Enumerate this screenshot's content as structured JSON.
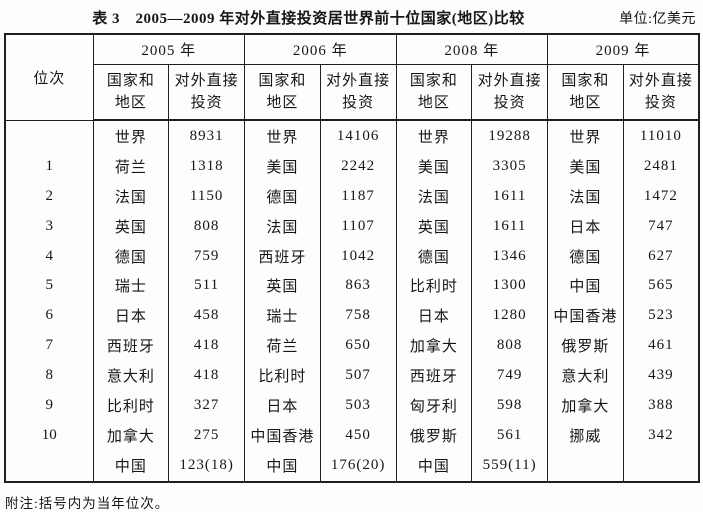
{
  "caption": {
    "title": "表 3　2005—2009 年对外直接投资居世界前十位国家(地区)比较",
    "unit": "单位:亿美元"
  },
  "table": {
    "rank_header": "位次",
    "years": [
      "2005 年",
      "2006 年",
      "2008 年",
      "2009 年"
    ],
    "sub_headers": {
      "country_line1": "国家和",
      "country_line2": "地区",
      "value_line1": "对外直接",
      "value_line2": "投资"
    },
    "rows": [
      {
        "rank": "",
        "cells": [
          [
            "世界",
            "8931"
          ],
          [
            "世界",
            "14106"
          ],
          [
            "世界",
            "19288"
          ],
          [
            "世界",
            "11010"
          ]
        ]
      },
      {
        "rank": "1",
        "cells": [
          [
            "荷兰",
            "1318"
          ],
          [
            "美国",
            "2242"
          ],
          [
            "美国",
            "3305"
          ],
          [
            "美国",
            "2481"
          ]
        ]
      },
      {
        "rank": "2",
        "cells": [
          [
            "法国",
            "1150"
          ],
          [
            "德国",
            "1187"
          ],
          [
            "法国",
            "1611"
          ],
          [
            "法国",
            "1472"
          ]
        ]
      },
      {
        "rank": "3",
        "cells": [
          [
            "英国",
            "808"
          ],
          [
            "法国",
            "1107"
          ],
          [
            "英国",
            "1611"
          ],
          [
            "日本",
            "747"
          ]
        ]
      },
      {
        "rank": "4",
        "cells": [
          [
            "德国",
            "759"
          ],
          [
            "西班牙",
            "1042"
          ],
          [
            "德国",
            "1346"
          ],
          [
            "德国",
            "627"
          ]
        ]
      },
      {
        "rank": "5",
        "cells": [
          [
            "瑞士",
            "511"
          ],
          [
            "英国",
            "863"
          ],
          [
            "比利时",
            "1300"
          ],
          [
            "中国",
            "565"
          ]
        ]
      },
      {
        "rank": "6",
        "cells": [
          [
            "日本",
            "458"
          ],
          [
            "瑞士",
            "758"
          ],
          [
            "日本",
            "1280"
          ],
          [
            "中国香港",
            "523"
          ]
        ]
      },
      {
        "rank": "7",
        "cells": [
          [
            "西班牙",
            "418"
          ],
          [
            "荷兰",
            "650"
          ],
          [
            "加拿大",
            "808"
          ],
          [
            "俄罗斯",
            "461"
          ]
        ]
      },
      {
        "rank": "8",
        "cells": [
          [
            "意大利",
            "418"
          ],
          [
            "比利时",
            "507"
          ],
          [
            "西班牙",
            "749"
          ],
          [
            "意大利",
            "439"
          ]
        ]
      },
      {
        "rank": "9",
        "cells": [
          [
            "比利时",
            "327"
          ],
          [
            "日本",
            "503"
          ],
          [
            "匈牙利",
            "598"
          ],
          [
            "加拿大",
            "388"
          ]
        ]
      },
      {
        "rank": "10",
        "cells": [
          [
            "加拿大",
            "275"
          ],
          [
            "中国香港",
            "450"
          ],
          [
            "俄罗斯",
            "561"
          ],
          [
            "挪威",
            "342"
          ]
        ]
      },
      {
        "rank": "",
        "cells": [
          [
            "中国",
            "123(18)"
          ],
          [
            "中国",
            "176(20)"
          ],
          [
            "中国",
            "559(11)"
          ],
          [
            "",
            ""
          ]
        ]
      }
    ]
  },
  "footnote": "附注:括号内为当年位次。"
}
